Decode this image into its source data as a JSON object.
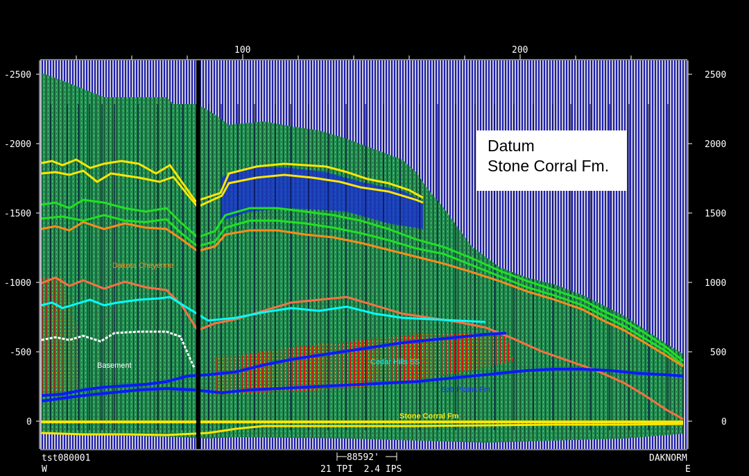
{
  "top_axis": {
    "ticks": [
      "100",
      "200"
    ]
  },
  "depth_axis": {
    "ticks": [
      "-2500",
      "-2000",
      "-1500",
      "-1000",
      "-500",
      "0"
    ]
  },
  "right_axis": {
    "ticks": [
      "2500",
      "2000",
      "1500",
      "1000",
      "500",
      "0"
    ]
  },
  "datum": {
    "line1": "Datum",
    "line2": "Stone Corral Fm."
  },
  "horizon_labels": {
    "dakota": "Dakota Cheyenne",
    "lower": "Basement",
    "cedar": "Cedar Hills SS",
    "salt": "Salt Plains Fm",
    "stone_corral": "Stone Corral Fm"
  },
  "footer": {
    "left_id": "tst080001",
    "west": "W",
    "scale": "88592'",
    "params": "21 TPI  2.4 IPS",
    "right_id": "DAKNORM",
    "east": "E"
  },
  "colors": {
    "background": "#000000",
    "panel": "#1c1ca8",
    "trace_fill": "#1e8c4a",
    "yellow": "#ffe600",
    "green": "#22e022",
    "orange": "#ff8c1a",
    "cyan": "#00ffff",
    "white": "#ffffff",
    "blue": "#0a1aff"
  }
}
